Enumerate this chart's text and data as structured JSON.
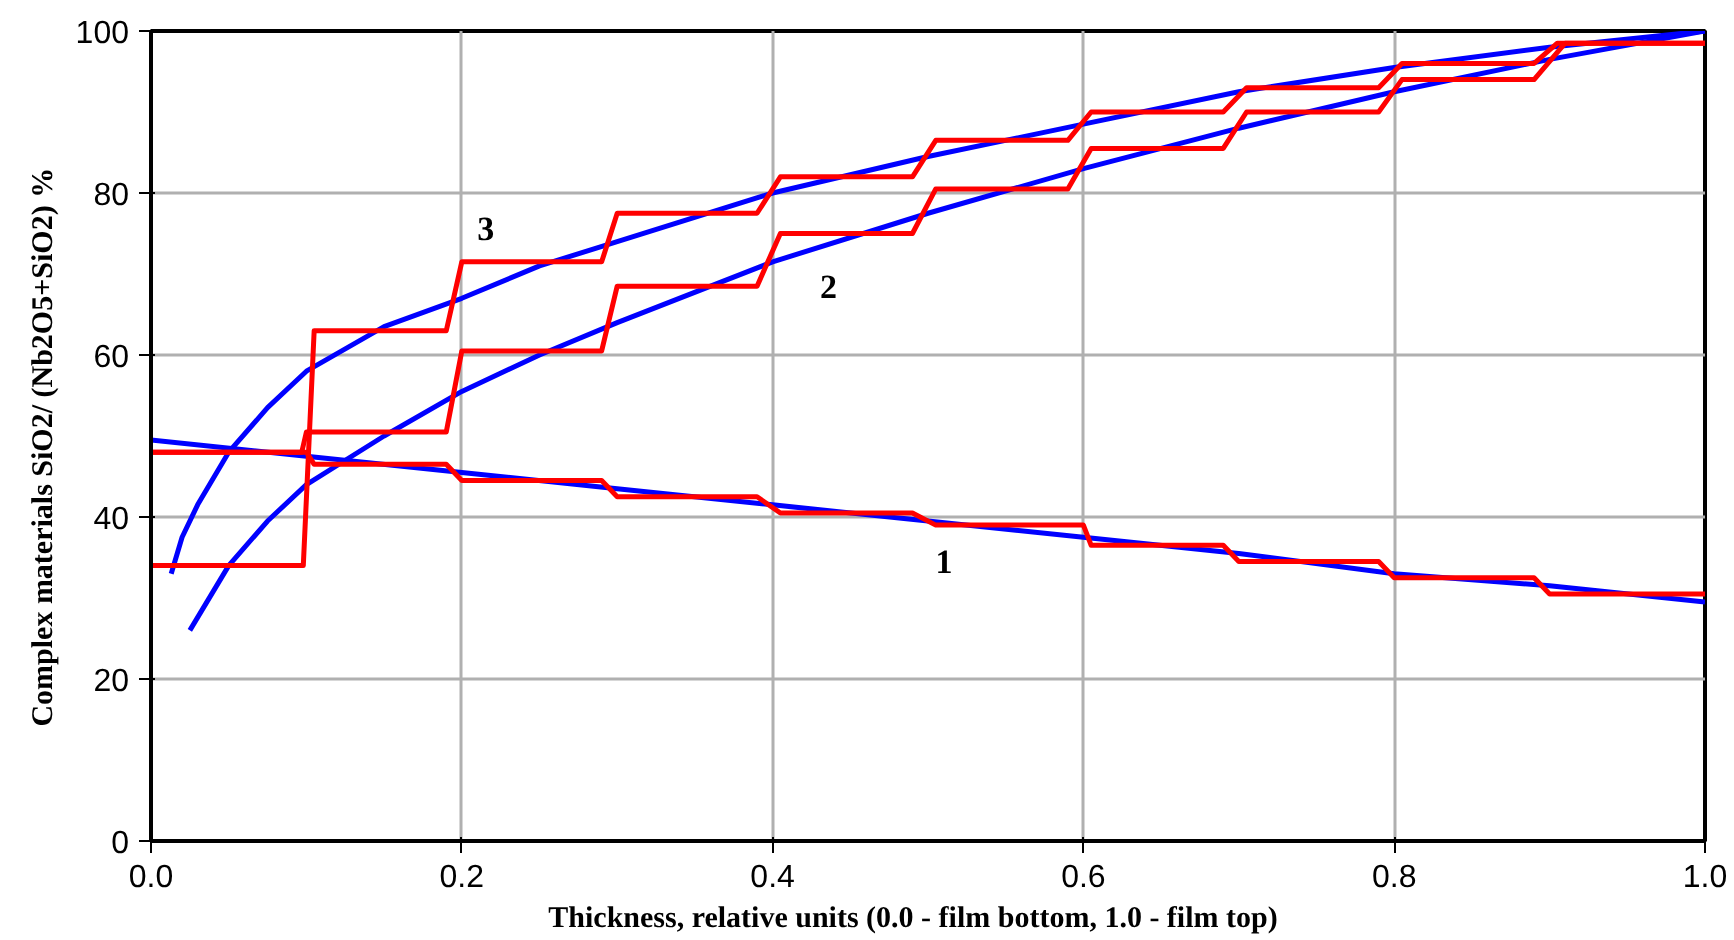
{
  "chart_data": {
    "type": "line",
    "xlabel": "Thickness,   relative units   (0.0 - film bottom, 1.0 - film top)",
    "ylabel": "Complex materials  SiO2/ (Nb2O5+SiO2)   %",
    "xlim": [
      0,
      1
    ],
    "ylim": [
      0,
      100
    ],
    "xticks": [
      {
        "value": 0,
        "label": "0.0"
      },
      0.2,
      0.4,
      0.6,
      0.8,
      {
        "value": 1,
        "label": "1.0"
      }
    ],
    "yticks": [
      0,
      20,
      40,
      60,
      80,
      100
    ],
    "grid": true,
    "marker": "none",
    "line_style": "solid",
    "series": [
      {
        "color": "#0000ff",
        "x": [
          0,
          0.1,
          0.2,
          0.3,
          0.4,
          0.5,
          0.6,
          0.7,
          0.8,
          0.9,
          1.0
        ],
        "values": [
          49.5,
          47.5,
          45.5,
          43.5,
          41.5,
          39.5,
          37.5,
          35.5,
          33,
          31.5,
          29.5
        ]
      },
      {
        "color": "#0000ff",
        "x": [
          0.025,
          0.05,
          0.075,
          0.1,
          0.15,
          0.2,
          0.25,
          0.3,
          0.4,
          0.5,
          0.6,
          0.7,
          0.8,
          0.9,
          1.0
        ],
        "values": [
          26,
          34,
          39.5,
          44,
          50,
          55.5,
          60,
          64,
          71.5,
          77.5,
          83,
          88,
          92.5,
          96.5,
          100
        ]
      },
      {
        "color": "#0000ff",
        "x": [
          0.013,
          0.02,
          0.03,
          0.05,
          0.075,
          0.1,
          0.15,
          0.2,
          0.25,
          0.3,
          0.4,
          0.5,
          0.6,
          0.7,
          0.8,
          0.9,
          1.0
        ],
        "values": [
          33,
          37.5,
          41.5,
          48,
          53.5,
          58,
          63.5,
          67,
          71,
          74,
          80,
          84.5,
          88.5,
          92.5,
          95.5,
          98,
          100
        ]
      },
      {
        "color": "#ff0000",
        "x": [
          0,
          0.1,
          0.105,
          0.19,
          0.2,
          0.29,
          0.3,
          0.39,
          0.405,
          0.49,
          0.505,
          0.6,
          0.605,
          0.69,
          0.7,
          0.79,
          0.8,
          0.89,
          0.9,
          1.0
        ],
        "values": [
          48,
          48,
          46.5,
          46.5,
          44.5,
          44.5,
          42.5,
          42.5,
          40.5,
          40.5,
          39,
          39,
          36.5,
          36.5,
          34.5,
          34.5,
          32.5,
          32.5,
          30.5,
          30.5
        ]
      },
      {
        "color": "#ff0000",
        "x": [
          0,
          0.097,
          0.1,
          0.19,
          0.2,
          0.29,
          0.3,
          0.39,
          0.405,
          0.49,
          0.505,
          0.59,
          0.605,
          0.69,
          0.705,
          0.79,
          0.805,
          0.89,
          0.91,
          1.0
        ],
        "values": [
          48,
          48,
          50.5,
          50.5,
          60.5,
          60.5,
          68.5,
          68.5,
          75,
          75,
          80.5,
          80.5,
          85.5,
          85.5,
          90,
          90,
          94,
          94,
          98.5,
          98.5
        ]
      },
      {
        "color": "#ff0000",
        "x": [
          0,
          0.098,
          0.105,
          0.19,
          0.2,
          0.29,
          0.3,
          0.39,
          0.405,
          0.49,
          0.505,
          0.59,
          0.605,
          0.69,
          0.705,
          0.79,
          0.805,
          0.89,
          0.905,
          1.0
        ],
        "values": [
          34,
          34,
          63,
          63,
          71.5,
          71.5,
          77.5,
          77.5,
          82,
          82,
          86.5,
          86.5,
          90,
          90,
          93,
          93,
          96,
          96,
          98.5,
          98.5
        ]
      }
    ],
    "annotations": [
      "1",
      "2",
      "3"
    ]
  }
}
